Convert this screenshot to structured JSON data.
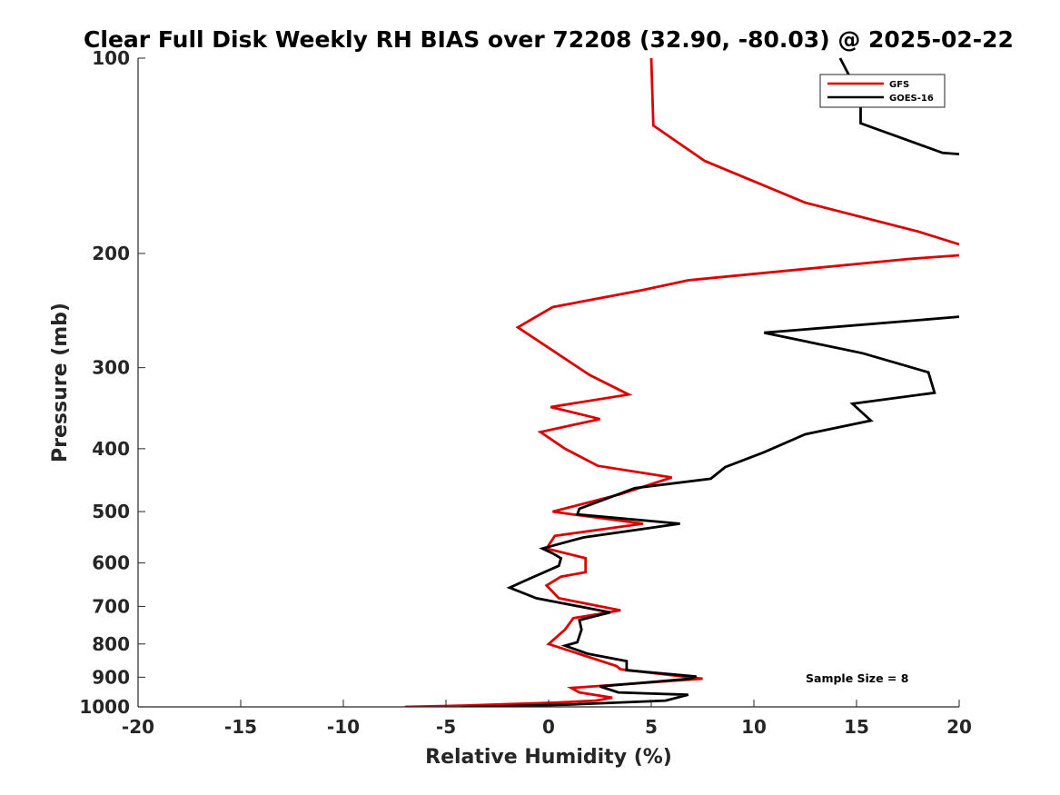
{
  "chart_data": {
    "type": "line",
    "title": "Clear Full Disk Weekly RH BIAS over 72208 (32.90, -80.03) @ 2025-02-22",
    "xlabel": "Relative Humidity (%)",
    "ylabel": "Pressure (mb)",
    "xlim": [
      -20,
      20
    ],
    "ylim": [
      100,
      1000
    ],
    "y_scale": "log",
    "y_reversed": true,
    "x_ticks": [
      -20,
      -15,
      -10,
      -5,
      0,
      5,
      10,
      15,
      20
    ],
    "x_tick_labels": [
      "-20",
      "-15",
      "-10",
      "-5",
      "0",
      "5",
      "10",
      "15",
      "20"
    ],
    "y_ticks": [
      100,
      200,
      300,
      400,
      500,
      600,
      700,
      800,
      900,
      1000
    ],
    "y_tick_labels": [
      "100",
      "200",
      "300",
      "400",
      "500",
      "600",
      "700",
      "800",
      "900",
      "1000"
    ],
    "grid": false,
    "legend_position": "top-right",
    "annotation": "Sample Size = 8",
    "series": [
      {
        "name": "GFS",
        "color": "#dd0000",
        "points": [
          [
            5.0,
            100
          ],
          [
            5.1,
            127
          ],
          [
            7.6,
            144
          ],
          [
            12.5,
            167
          ],
          [
            18.0,
            185
          ],
          [
            20.3,
            195
          ],
          [
            20.3,
            201
          ],
          [
            17.5,
            204
          ],
          [
            6.8,
            220
          ],
          [
            4.5,
            228
          ],
          [
            0.2,
            242
          ],
          [
            -1.5,
            260
          ],
          [
            2.0,
            308
          ],
          [
            3.9,
            330
          ],
          [
            0.1,
            345
          ],
          [
            2.5,
            360
          ],
          [
            -0.4,
            377
          ],
          [
            0.8,
            400
          ],
          [
            2.4,
            425
          ],
          [
            6.0,
            443
          ],
          [
            3.5,
            470
          ],
          [
            0.2,
            500
          ],
          [
            1.2,
            505
          ],
          [
            4.6,
            522
          ],
          [
            0.3,
            545
          ],
          [
            -0.1,
            570
          ],
          [
            1.8,
            590
          ],
          [
            1.8,
            620
          ],
          [
            0.6,
            630
          ],
          [
            -0.1,
            650
          ],
          [
            0.5,
            680
          ],
          [
            3.5,
            710
          ],
          [
            1.2,
            730
          ],
          [
            0.8,
            760
          ],
          [
            0.0,
            800
          ],
          [
            3.3,
            865
          ],
          [
            3.5,
            875
          ],
          [
            7.5,
            905
          ],
          [
            1.1,
            935
          ],
          [
            1.5,
            950
          ],
          [
            3.1,
            968
          ],
          [
            2.3,
            978
          ],
          [
            0.4,
            985
          ],
          [
            -4.5,
            996
          ],
          [
            -7.0,
            1000
          ]
        ]
      },
      {
        "name": "GOES-16",
        "color": "#000000",
        "points": [
          [
            14.2,
            100
          ],
          [
            15.2,
            115
          ],
          [
            15.2,
            126
          ],
          [
            19.2,
            140
          ],
          [
            20.5,
            141
          ],
          [
            20.3,
            250
          ],
          [
            10.5,
            265
          ],
          [
            15.3,
            285
          ],
          [
            18.5,
            305
          ],
          [
            18.8,
            328
          ],
          [
            14.8,
            341
          ],
          [
            15.7,
            362
          ],
          [
            12.5,
            380
          ],
          [
            10.5,
            405
          ],
          [
            8.6,
            427
          ],
          [
            7.9,
            445
          ],
          [
            4.2,
            460
          ],
          [
            1.5,
            495
          ],
          [
            1.4,
            505
          ],
          [
            6.4,
            522
          ],
          [
            1.7,
            548
          ],
          [
            -0.3,
            570
          ],
          [
            0.2,
            580
          ],
          [
            0.6,
            590
          ],
          [
            0.5,
            606
          ],
          [
            -1.2,
            640
          ],
          [
            -1.9,
            655
          ],
          [
            -0.6,
            680
          ],
          [
            3.0,
            715
          ],
          [
            1.5,
            735
          ],
          [
            1.6,
            760
          ],
          [
            1.4,
            795
          ],
          [
            0.8,
            805
          ],
          [
            1.9,
            828
          ],
          [
            3.8,
            850
          ],
          [
            3.8,
            878
          ],
          [
            7.2,
            898
          ],
          [
            6.9,
            905
          ],
          [
            2.5,
            930
          ],
          [
            3.4,
            950
          ],
          [
            6.8,
            958
          ],
          [
            5.7,
            978
          ],
          [
            1.0,
            992
          ],
          [
            -4.3,
            1002
          ]
        ]
      }
    ]
  }
}
